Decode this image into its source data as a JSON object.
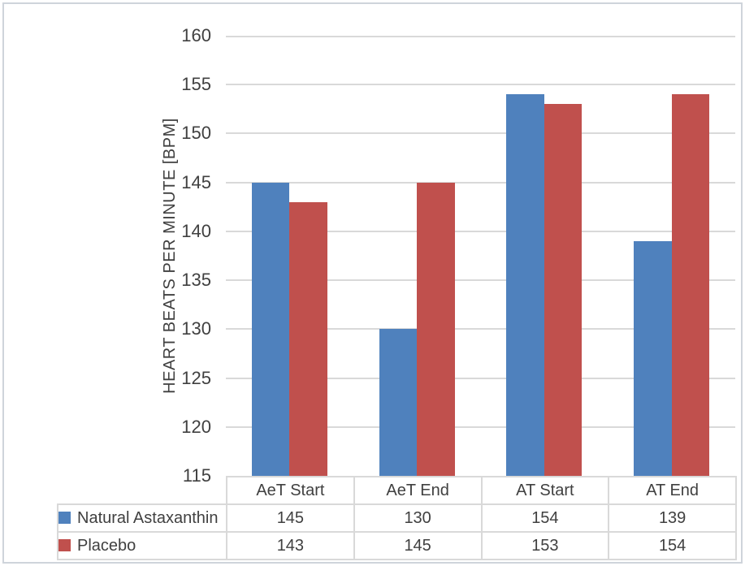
{
  "chart_data": {
    "type": "bar",
    "title": "",
    "xlabel": "",
    "ylabel": "HEART BEATS PER MINUTE [BPM]",
    "categories": [
      "AeT Start",
      "AeT End",
      "AT Start",
      "AT End"
    ],
    "series": [
      {
        "name": "Natural Astaxanthin",
        "color": "#4F81BD",
        "values": [
          145,
          130,
          154,
          139
        ]
      },
      {
        "name": "Placebo",
        "color": "#C0504D",
        "values": [
          143,
          145,
          153,
          154
        ]
      }
    ],
    "ylim": [
      115,
      160
    ],
    "ytick_step": 5,
    "yticks": [
      160,
      155,
      150,
      145,
      140,
      135,
      130,
      125,
      120,
      115
    ],
    "grid": true,
    "legend_position": "data-table-left",
    "data_table_shown": true
  },
  "colors": {
    "gridline": "#D9D9D9",
    "table_border": "#D9D9D9",
    "axis_text": "#404040",
    "outer_border": "#CFD4DB",
    "background": "#FFFFFF"
  }
}
